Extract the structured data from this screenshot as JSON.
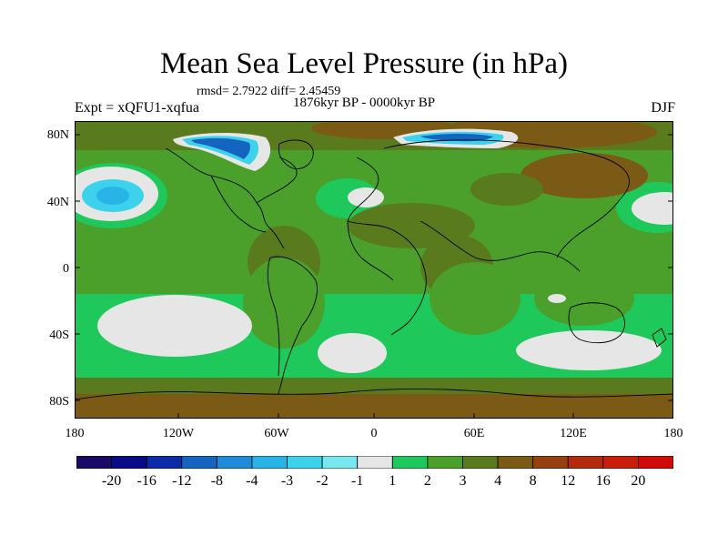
{
  "title": "Mean Sea Level Pressure (in hPa)",
  "stats_line": "rmsd= 2.7922 diff= 2.45459",
  "period": "1876kyr BP - 0000kyr BP",
  "experiment": "Expt = xQFU1-xqfua",
  "season": "DJF",
  "lat_labels": [
    "80N",
    "40N",
    "0",
    "40S",
    "80S"
  ],
  "lon_labels": [
    "180",
    "120W",
    "60W",
    "0",
    "60E",
    "120E",
    "180"
  ],
  "colorbar": {
    "labels": [
      "-20",
      "-16",
      "-12",
      "-8",
      "-4",
      "-3",
      "-2",
      "-1",
      "1",
      "2",
      "3",
      "4",
      "8",
      "12",
      "16",
      "20"
    ],
    "colors": [
      "#1a0a66",
      "#0a0a88",
      "#0d2aa8",
      "#1464c0",
      "#1e8cd8",
      "#28b4e6",
      "#3cd2ec",
      "#78e8f0",
      "#e6e6e6",
      "#1ec85a",
      "#4aa02a",
      "#5a7a1e",
      "#7a5a14",
      "#96400f",
      "#b42a0d",
      "#c81e0a",
      "#d20a0a"
    ]
  }
}
